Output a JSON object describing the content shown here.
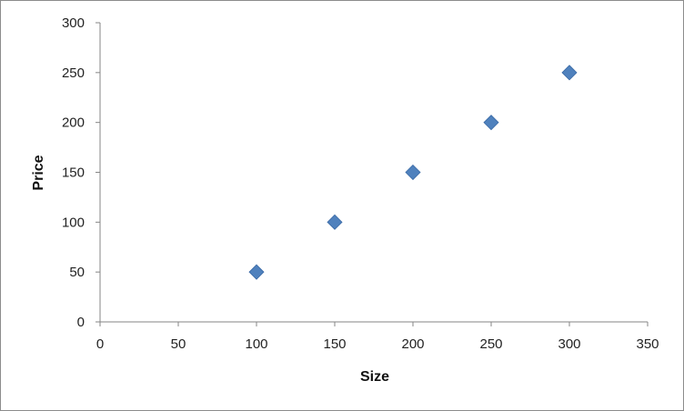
{
  "chart_data": {
    "type": "scatter",
    "title": "",
    "xlabel": "Size",
    "ylabel": "Price",
    "x": [
      100,
      150,
      200,
      250,
      300
    ],
    "y": [
      50,
      100,
      150,
      200,
      250
    ],
    "xlim": [
      0,
      350
    ],
    "ylim": [
      0,
      300
    ],
    "x_ticks": [
      0,
      50,
      100,
      150,
      200,
      250,
      300,
      350
    ],
    "y_ticks": [
      0,
      50,
      100,
      150,
      200,
      250,
      300
    ],
    "grid": false,
    "legend": "none",
    "marker": "diamond",
    "marker_color": "#4f81bd",
    "axis_color": "#868686"
  }
}
